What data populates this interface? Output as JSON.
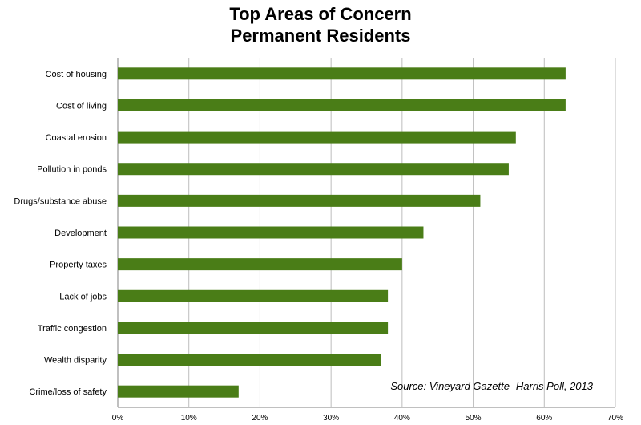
{
  "chart_data": {
    "type": "bar",
    "orientation": "horizontal",
    "title": "Top Areas of Concern",
    "subtitle": "Permanent Residents",
    "categories": [
      "Cost of housing",
      "Cost of living",
      "Coastal erosion",
      "Pollution in ponds",
      "Drugs/substance abuse",
      "Development",
      "Property taxes",
      "Lack of jobs",
      "Traffic congestion",
      "Wealth disparity",
      "Crime/loss of safety"
    ],
    "values": [
      63,
      63,
      56,
      55,
      51,
      43,
      40,
      38,
      38,
      37,
      17
    ],
    "xlim": [
      0,
      70
    ],
    "xticks": [
      0,
      10,
      20,
      30,
      40,
      50,
      60,
      70
    ],
    "xtick_labels": [
      "0%",
      "10%",
      "20%",
      "30%",
      "40%",
      "50%",
      "60%",
      "70%"
    ],
    "grid": true,
    "bar_color": "#4a7d17",
    "annotation": "Source: Vineyard Gazette- Harris Poll, 2013"
  }
}
